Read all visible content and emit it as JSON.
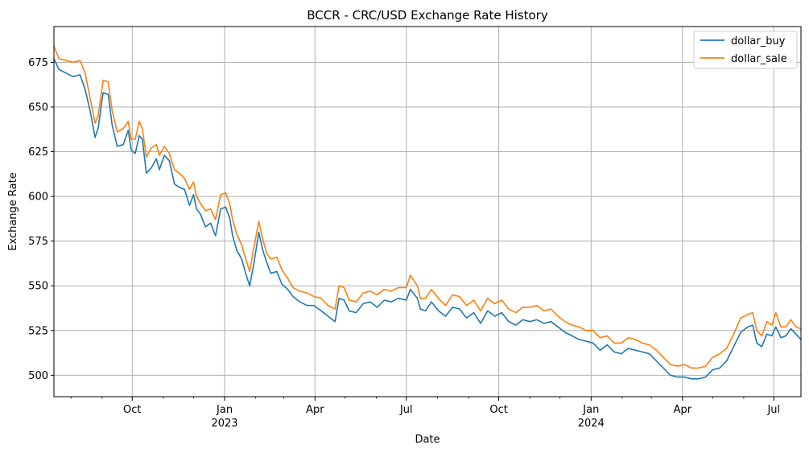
{
  "chart_data": {
    "type": "line",
    "title": "BCCR - CRC/USD Exchange Rate History",
    "xlabel": "Date",
    "ylabel": "Exchange Rate",
    "x_range": [
      "2022-07-15",
      "2024-07-28"
    ],
    "ylim": [
      488,
      695
    ],
    "grid": true,
    "legend_position": "top-right",
    "x_ticks": [
      {
        "date": "2022-10-01",
        "label": "Oct",
        "sub": ""
      },
      {
        "date": "2023-01-01",
        "label": "Jan",
        "sub": "2023"
      },
      {
        "date": "2023-04-01",
        "label": "Apr",
        "sub": ""
      },
      {
        "date": "2023-07-01",
        "label": "Jul",
        "sub": ""
      },
      {
        "date": "2023-10-01",
        "label": "Oct",
        "sub": ""
      },
      {
        "date": "2024-01-01",
        "label": "Jan",
        "sub": "2024"
      },
      {
        "date": "2024-04-01",
        "label": "Apr",
        "sub": ""
      },
      {
        "date": "2024-07-01",
        "label": "Jul",
        "sub": ""
      }
    ],
    "y_ticks": [
      500,
      525,
      550,
      575,
      600,
      625,
      650,
      675
    ],
    "series": [
      {
        "name": "dollar_buy",
        "color": "#1f77b4",
        "points": [
          [
            "2022-07-15",
            677
          ],
          [
            "2022-07-20",
            671
          ],
          [
            "2022-07-27",
            669
          ],
          [
            "2022-08-03",
            667
          ],
          [
            "2022-08-10",
            668
          ],
          [
            "2022-08-15",
            660
          ],
          [
            "2022-08-20",
            648
          ],
          [
            "2022-08-25",
            633
          ],
          [
            "2022-08-28",
            638
          ],
          [
            "2022-09-02",
            658
          ],
          [
            "2022-09-07",
            657
          ],
          [
            "2022-09-11",
            640
          ],
          [
            "2022-09-16",
            628
          ],
          [
            "2022-09-22",
            629
          ],
          [
            "2022-09-27",
            637
          ],
          [
            "2022-09-30",
            626
          ],
          [
            "2022-10-04",
            624
          ],
          [
            "2022-10-08",
            634
          ],
          [
            "2022-10-11",
            632
          ],
          [
            "2022-10-15",
            613
          ],
          [
            "2022-10-20",
            616
          ],
          [
            "2022-10-25",
            621
          ],
          [
            "2022-10-28",
            615
          ],
          [
            "2022-11-02",
            623
          ],
          [
            "2022-11-07",
            620
          ],
          [
            "2022-11-12",
            607
          ],
          [
            "2022-11-17",
            605
          ],
          [
            "2022-11-22",
            604
          ],
          [
            "2022-11-27",
            595
          ],
          [
            "2022-12-01",
            601
          ],
          [
            "2022-12-04",
            593
          ],
          [
            "2022-12-08",
            590
          ],
          [
            "2022-12-13",
            583
          ],
          [
            "2022-12-18",
            585
          ],
          [
            "2022-12-23",
            578
          ],
          [
            "2022-12-28",
            593
          ],
          [
            "2023-01-02",
            594
          ],
          [
            "2023-01-06",
            588
          ],
          [
            "2023-01-09",
            578
          ],
          [
            "2023-01-13",
            570
          ],
          [
            "2023-01-18",
            565
          ],
          [
            "2023-01-22",
            557
          ],
          [
            "2023-01-26",
            550
          ],
          [
            "2023-01-30",
            562
          ],
          [
            "2023-02-04",
            580
          ],
          [
            "2023-02-08",
            570
          ],
          [
            "2023-02-12",
            563
          ],
          [
            "2023-02-16",
            557
          ],
          [
            "2023-02-22",
            558
          ],
          [
            "2023-02-27",
            551
          ],
          [
            "2023-03-05",
            548
          ],
          [
            "2023-03-10",
            544
          ],
          [
            "2023-03-17",
            541
          ],
          [
            "2023-03-24",
            539
          ],
          [
            "2023-03-31",
            539
          ],
          [
            "2023-04-07",
            536
          ],
          [
            "2023-04-14",
            533
          ],
          [
            "2023-04-21",
            530
          ],
          [
            "2023-04-25",
            543
          ],
          [
            "2023-04-30",
            542
          ],
          [
            "2023-05-05",
            536
          ],
          [
            "2023-05-12",
            535
          ],
          [
            "2023-05-19",
            540
          ],
          [
            "2023-05-26",
            541
          ],
          [
            "2023-06-02",
            538
          ],
          [
            "2023-06-09",
            542
          ],
          [
            "2023-06-16",
            541
          ],
          [
            "2023-06-23",
            543
          ],
          [
            "2023-07-01",
            542
          ],
          [
            "2023-07-05",
            548
          ],
          [
            "2023-07-12",
            543
          ],
          [
            "2023-07-15",
            537
          ],
          [
            "2023-07-20",
            536
          ],
          [
            "2023-07-26",
            541
          ],
          [
            "2023-08-02",
            536
          ],
          [
            "2023-08-09",
            533
          ],
          [
            "2023-08-16",
            538
          ],
          [
            "2023-08-23",
            537
          ],
          [
            "2023-08-30",
            532
          ],
          [
            "2023-09-06",
            535
          ],
          [
            "2023-09-13",
            529
          ],
          [
            "2023-09-20",
            536
          ],
          [
            "2023-09-27",
            533
          ],
          [
            "2023-10-04",
            535
          ],
          [
            "2023-10-11",
            530
          ],
          [
            "2023-10-18",
            528
          ],
          [
            "2023-10-25",
            531
          ],
          [
            "2023-11-01",
            530
          ],
          [
            "2023-11-08",
            531
          ],
          [
            "2023-11-15",
            529
          ],
          [
            "2023-11-22",
            530
          ],
          [
            "2023-11-29",
            527
          ],
          [
            "2023-12-06",
            524
          ],
          [
            "2023-12-13",
            522
          ],
          [
            "2023-12-20",
            520
          ],
          [
            "2023-12-27",
            519
          ],
          [
            "2024-01-03",
            518
          ],
          [
            "2024-01-10",
            514
          ],
          [
            "2024-01-17",
            517
          ],
          [
            "2024-01-24",
            513
          ],
          [
            "2024-01-31",
            512
          ],
          [
            "2024-02-07",
            515
          ],
          [
            "2024-02-14",
            514
          ],
          [
            "2024-02-21",
            513
          ],
          [
            "2024-02-28",
            512
          ],
          [
            "2024-03-06",
            508
          ],
          [
            "2024-03-13",
            504
          ],
          [
            "2024-03-20",
            500
          ],
          [
            "2024-03-27",
            499
          ],
          [
            "2024-04-03",
            499
          ],
          [
            "2024-04-10",
            498
          ],
          [
            "2024-04-17",
            498
          ],
          [
            "2024-04-24",
            499
          ],
          [
            "2024-05-01",
            503
          ],
          [
            "2024-05-08",
            504
          ],
          [
            "2024-05-15",
            508
          ],
          [
            "2024-05-22",
            516
          ],
          [
            "2024-05-29",
            524
          ],
          [
            "2024-06-05",
            527
          ],
          [
            "2024-06-10",
            528
          ],
          [
            "2024-06-14",
            518
          ],
          [
            "2024-06-19",
            516
          ],
          [
            "2024-06-24",
            523
          ],
          [
            "2024-06-29",
            522
          ],
          [
            "2024-07-03",
            527
          ],
          [
            "2024-07-08",
            521
          ],
          [
            "2024-07-13",
            522
          ],
          [
            "2024-07-18",
            526
          ],
          [
            "2024-07-23",
            523
          ],
          [
            "2024-07-28",
            520
          ]
        ]
      },
      {
        "name": "dollar_sale",
        "color": "#ff7f0e",
        "points": [
          [
            "2022-07-15",
            684
          ],
          [
            "2022-07-20",
            677
          ],
          [
            "2022-07-27",
            676
          ],
          [
            "2022-08-03",
            675
          ],
          [
            "2022-08-10",
            676
          ],
          [
            "2022-08-15",
            669
          ],
          [
            "2022-08-20",
            655
          ],
          [
            "2022-08-25",
            641
          ],
          [
            "2022-08-28",
            645
          ],
          [
            "2022-09-02",
            665
          ],
          [
            "2022-09-07",
            664
          ],
          [
            "2022-09-11",
            648
          ],
          [
            "2022-09-16",
            636
          ],
          [
            "2022-09-22",
            638
          ],
          [
            "2022-09-27",
            642
          ],
          [
            "2022-09-30",
            632
          ],
          [
            "2022-10-04",
            632
          ],
          [
            "2022-10-08",
            642
          ],
          [
            "2022-10-11",
            638
          ],
          [
            "2022-10-15",
            622
          ],
          [
            "2022-10-20",
            627
          ],
          [
            "2022-10-25",
            629
          ],
          [
            "2022-10-28",
            623
          ],
          [
            "2022-11-02",
            628
          ],
          [
            "2022-11-07",
            624
          ],
          [
            "2022-11-12",
            615
          ],
          [
            "2022-11-17",
            613
          ],
          [
            "2022-11-22",
            610
          ],
          [
            "2022-11-27",
            604
          ],
          [
            "2022-12-01",
            608
          ],
          [
            "2022-12-04",
            600
          ],
          [
            "2022-12-08",
            596
          ],
          [
            "2022-12-13",
            592
          ],
          [
            "2022-12-18",
            593
          ],
          [
            "2022-12-23",
            587
          ],
          [
            "2022-12-28",
            601
          ],
          [
            "2023-01-02",
            602
          ],
          [
            "2023-01-06",
            596
          ],
          [
            "2023-01-09",
            587
          ],
          [
            "2023-01-13",
            579
          ],
          [
            "2023-01-18",
            573
          ],
          [
            "2023-01-22",
            565
          ],
          [
            "2023-01-26",
            558
          ],
          [
            "2023-01-30",
            571
          ],
          [
            "2023-02-04",
            586
          ],
          [
            "2023-02-08",
            576
          ],
          [
            "2023-02-12",
            568
          ],
          [
            "2023-02-16",
            565
          ],
          [
            "2023-02-22",
            566
          ],
          [
            "2023-02-27",
            559
          ],
          [
            "2023-03-05",
            554
          ],
          [
            "2023-03-10",
            549
          ],
          [
            "2023-03-17",
            547
          ],
          [
            "2023-03-24",
            546
          ],
          [
            "2023-03-31",
            544
          ],
          [
            "2023-04-07",
            543
          ],
          [
            "2023-04-14",
            539
          ],
          [
            "2023-04-21",
            537
          ],
          [
            "2023-04-25",
            550
          ],
          [
            "2023-04-30",
            549
          ],
          [
            "2023-05-05",
            542
          ],
          [
            "2023-05-12",
            541
          ],
          [
            "2023-05-19",
            546
          ],
          [
            "2023-05-26",
            547
          ],
          [
            "2023-06-02",
            545
          ],
          [
            "2023-06-09",
            548
          ],
          [
            "2023-06-16",
            547
          ],
          [
            "2023-06-23",
            549
          ],
          [
            "2023-07-01",
            549
          ],
          [
            "2023-07-05",
            556
          ],
          [
            "2023-07-12",
            550
          ],
          [
            "2023-07-15",
            543
          ],
          [
            "2023-07-20",
            543
          ],
          [
            "2023-07-26",
            548
          ],
          [
            "2023-08-02",
            543
          ],
          [
            "2023-08-09",
            539
          ],
          [
            "2023-08-16",
            545
          ],
          [
            "2023-08-23",
            544
          ],
          [
            "2023-08-30",
            539
          ],
          [
            "2023-09-06",
            542
          ],
          [
            "2023-09-13",
            536
          ],
          [
            "2023-09-20",
            543
          ],
          [
            "2023-09-27",
            540
          ],
          [
            "2023-10-04",
            542
          ],
          [
            "2023-10-11",
            537
          ],
          [
            "2023-10-18",
            535
          ],
          [
            "2023-10-25",
            538
          ],
          [
            "2023-11-01",
            538
          ],
          [
            "2023-11-08",
            539
          ],
          [
            "2023-11-15",
            536
          ],
          [
            "2023-11-22",
            537
          ],
          [
            "2023-11-29",
            533
          ],
          [
            "2023-12-06",
            530
          ],
          [
            "2023-12-13",
            528
          ],
          [
            "2023-12-20",
            527
          ],
          [
            "2023-12-27",
            525
          ],
          [
            "2024-01-03",
            525
          ],
          [
            "2024-01-10",
            521
          ],
          [
            "2024-01-17",
            522
          ],
          [
            "2024-01-24",
            518
          ],
          [
            "2024-01-31",
            518
          ],
          [
            "2024-02-07",
            521
          ],
          [
            "2024-02-14",
            520
          ],
          [
            "2024-02-21",
            518
          ],
          [
            "2024-02-28",
            517
          ],
          [
            "2024-03-06",
            514
          ],
          [
            "2024-03-13",
            510
          ],
          [
            "2024-03-20",
            506
          ],
          [
            "2024-03-27",
            505
          ],
          [
            "2024-04-03",
            506
          ],
          [
            "2024-04-10",
            504
          ],
          [
            "2024-04-17",
            504
          ],
          [
            "2024-04-24",
            505
          ],
          [
            "2024-05-01",
            510
          ],
          [
            "2024-05-08",
            512
          ],
          [
            "2024-05-15",
            515
          ],
          [
            "2024-05-22",
            523
          ],
          [
            "2024-05-29",
            532
          ],
          [
            "2024-06-05",
            534
          ],
          [
            "2024-06-10",
            535
          ],
          [
            "2024-06-14",
            525
          ],
          [
            "2024-06-19",
            522
          ],
          [
            "2024-06-24",
            530
          ],
          [
            "2024-06-29",
            528
          ],
          [
            "2024-07-03",
            535
          ],
          [
            "2024-07-08",
            527
          ],
          [
            "2024-07-13",
            527
          ],
          [
            "2024-07-18",
            531
          ],
          [
            "2024-07-23",
            527
          ],
          [
            "2024-07-28",
            526
          ]
        ]
      }
    ]
  }
}
